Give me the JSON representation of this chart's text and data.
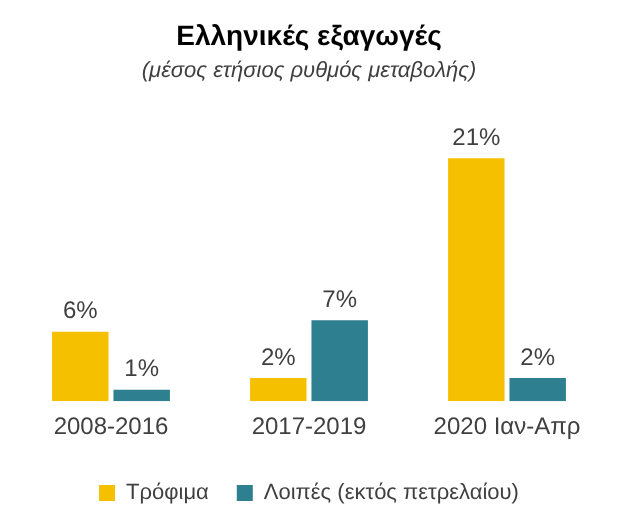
{
  "chart_data": {
    "type": "bar",
    "title": "Ελληνικές εξαγωγές",
    "subtitle": "(μέσος ετήσιος ρυθμός μεταβολής)",
    "categories": [
      "2008-2016",
      "2017-2019",
      "2020 Ιαν-Απρ"
    ],
    "series": [
      {
        "name": "Τρόφιμα",
        "color": "#f5c000",
        "values": [
          6,
          2,
          21
        ],
        "value_labels": [
          "6%",
          "2%",
          "21%"
        ]
      },
      {
        "name": "Λοιπές (εκτός πετρελαίου)",
        "color": "#2e7f8f",
        "values": [
          1,
          7,
          2
        ],
        "value_labels": [
          "1%",
          "7%",
          "2%"
        ]
      }
    ],
    "legend": "bottom",
    "grid": false
  }
}
